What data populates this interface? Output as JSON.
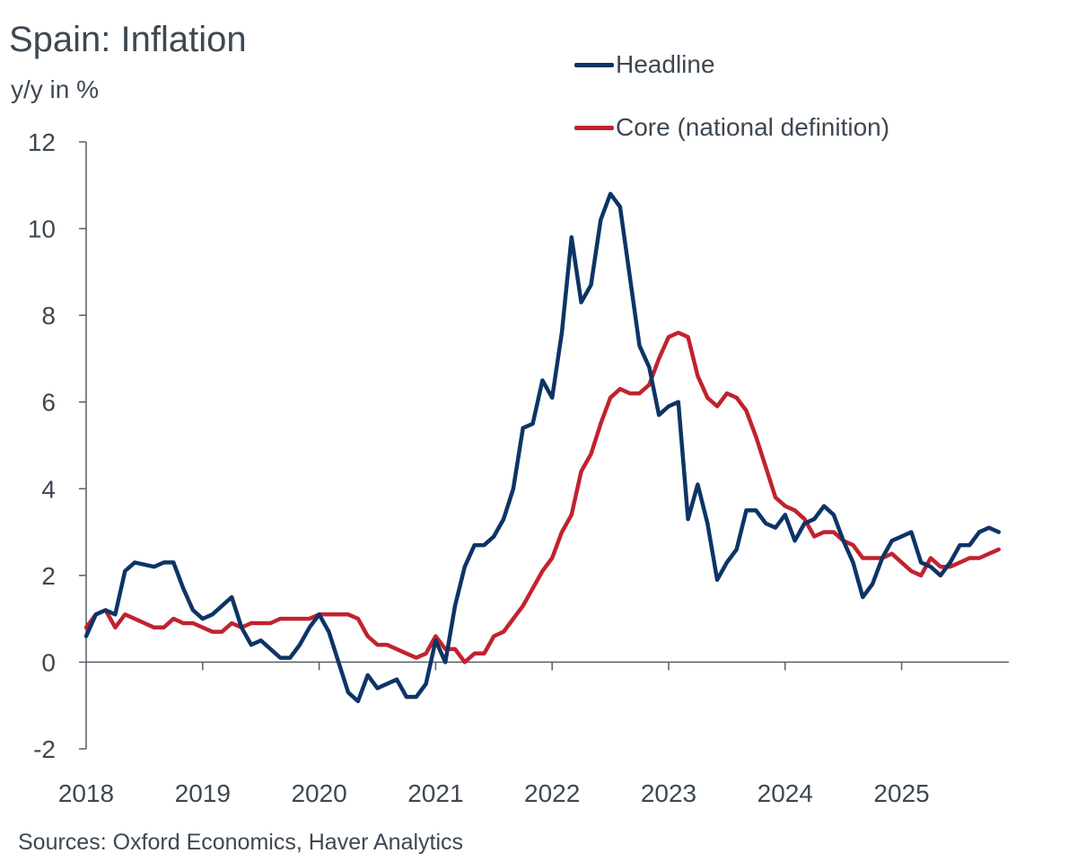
{
  "chart_data": {
    "type": "line",
    "title": "Spain: Inflation",
    "subtitle": "y/y in %",
    "source": "Sources: Oxford Economics, Haver Analytics",
    "ylim": [
      -2,
      12
    ],
    "xlim": [
      2018.0,
      2025.92
    ],
    "yticks": [
      "12",
      "10",
      "8",
      "6",
      "4",
      "2",
      "0",
      "-2"
    ],
    "ytick_values": [
      12,
      10,
      8,
      6,
      4,
      2,
      0,
      -2
    ],
    "xticks": [
      "2018",
      "2019",
      "2020",
      "2021",
      "2022",
      "2023",
      "2024",
      "2025"
    ],
    "xtick_values": [
      2018,
      2019,
      2020,
      2021,
      2022,
      2023,
      2024,
      2025
    ],
    "legend_position": "top-right",
    "x_start": "2018-01",
    "series": [
      {
        "name": "Headline",
        "color": "#0d3466",
        "values": [
          0.6,
          1.1,
          1.2,
          1.1,
          2.1,
          2.3,
          2.25,
          2.2,
          2.3,
          2.3,
          1.7,
          1.2,
          1.0,
          1.1,
          1.3,
          1.5,
          0.8,
          0.4,
          0.5,
          0.3,
          0.1,
          0.1,
          0.4,
          0.8,
          1.1,
          0.7,
          0.0,
          -0.7,
          -0.9,
          -0.3,
          -0.6,
          -0.5,
          -0.4,
          -0.8,
          -0.8,
          -0.5,
          0.5,
          0.0,
          1.3,
          2.2,
          2.7,
          2.7,
          2.9,
          3.3,
          4.0,
          5.4,
          5.5,
          6.5,
          6.1,
          7.6,
          9.8,
          8.3,
          8.7,
          10.2,
          10.8,
          10.5,
          8.9,
          7.3,
          6.8,
          5.7,
          5.9,
          6.0,
          3.3,
          4.1,
          3.2,
          1.9,
          2.3,
          2.6,
          3.5,
          3.5,
          3.2,
          3.1,
          3.4,
          2.8,
          3.2,
          3.3,
          3.6,
          3.4,
          2.8,
          2.3,
          1.5,
          1.8,
          2.4,
          2.8,
          2.9,
          3.0,
          2.3,
          2.2,
          2.0,
          2.3,
          2.7,
          2.7,
          3.0,
          3.1,
          3.0
        ]
      },
      {
        "name": "Core (national definition)",
        "color": "#c0232e",
        "values": [
          0.8,
          1.1,
          1.2,
          0.8,
          1.1,
          1.0,
          0.9,
          0.8,
          0.8,
          1.0,
          0.9,
          0.9,
          0.8,
          0.7,
          0.7,
          0.9,
          0.8,
          0.9,
          0.9,
          0.9,
          1.0,
          1.0,
          1.0,
          1.0,
          1.1,
          1.1,
          1.1,
          1.1,
          1.0,
          0.6,
          0.4,
          0.4,
          0.3,
          0.2,
          0.1,
          0.2,
          0.6,
          0.3,
          0.3,
          0.0,
          0.2,
          0.2,
          0.6,
          0.7,
          1.0,
          1.3,
          1.7,
          2.1,
          2.4,
          3.0,
          3.4,
          4.4,
          4.8,
          5.5,
          6.1,
          6.3,
          6.2,
          6.2,
          6.4,
          7.0,
          7.5,
          7.6,
          7.5,
          6.6,
          6.1,
          5.9,
          6.2,
          6.1,
          5.8,
          5.2,
          4.5,
          3.8,
          3.6,
          3.5,
          3.3,
          2.9,
          3.0,
          3.0,
          2.8,
          2.7,
          2.4,
          2.4,
          2.4,
          2.5,
          2.3,
          2.1,
          2.0,
          2.4,
          2.2,
          2.2,
          2.3,
          2.4,
          2.4,
          2.5,
          2.6
        ]
      }
    ]
  }
}
